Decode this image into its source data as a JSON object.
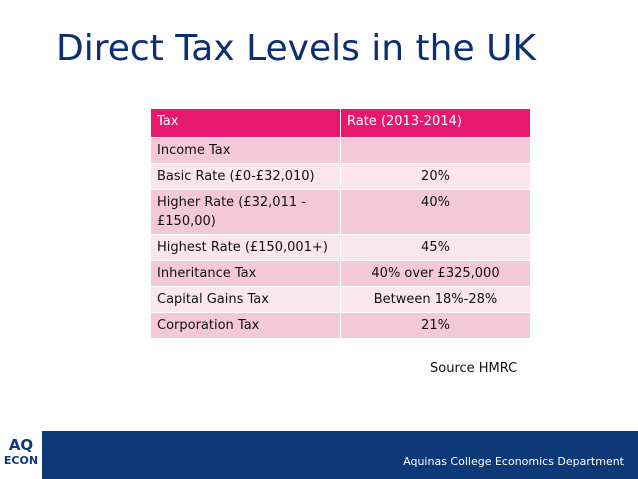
{
  "title": "Direct Tax Levels in the UK",
  "table": {
    "headers": [
      "Tax",
      "Rate (2013-2014)"
    ],
    "rows": [
      [
        "Income Tax",
        ""
      ],
      [
        "Basic Rate (£0-£32,010)",
        "20%"
      ],
      [
        "Higher Rate (£32,011 - £150,00)",
        "40%"
      ],
      [
        "Highest Rate (£150,001+)",
        "45%"
      ],
      [
        "Inheritance Tax",
        "40% over £325,000"
      ],
      [
        "Capital Gains Tax",
        "Between 18%-28%"
      ],
      [
        "Corporation Tax",
        "21%"
      ]
    ]
  },
  "source": "Source HMRC",
  "footer": {
    "logo_line1": "AQ",
    "logo_line2": "ECON",
    "text": "Aquinas College Economics Department"
  }
}
